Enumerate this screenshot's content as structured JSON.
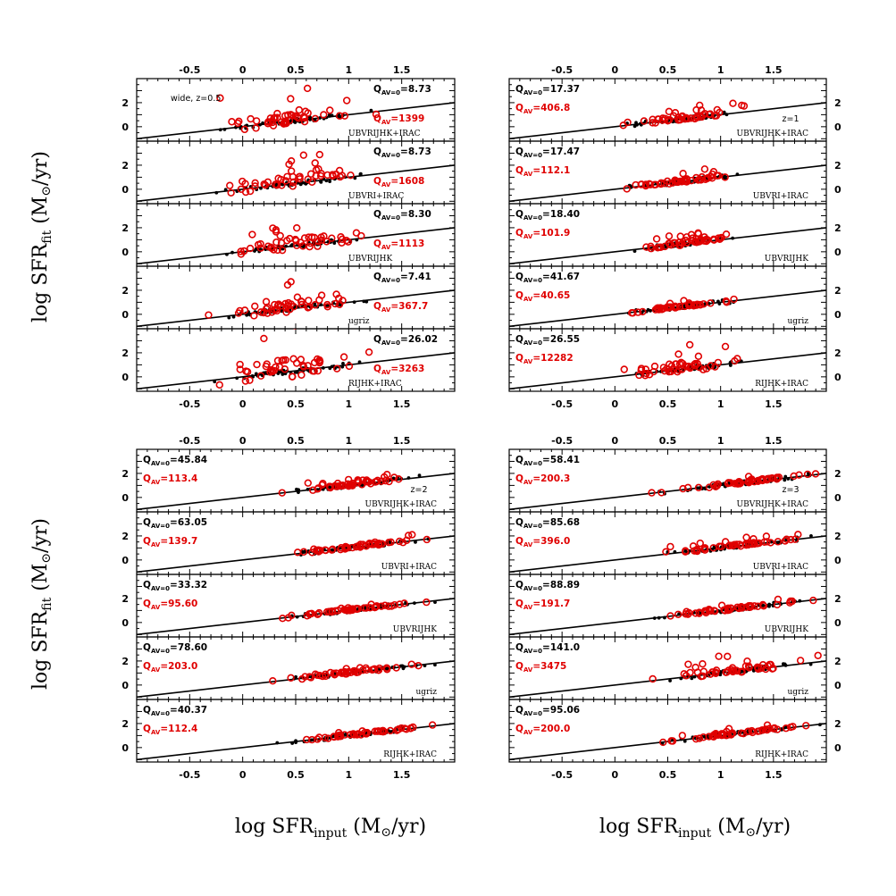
{
  "figure": {
    "y_axis_title_main": "log SFR",
    "y_axis_title_sub": "fit",
    "y_axis_title_units": " (M",
    "y_axis_title_units_end": "/yr)",
    "x_axis_title_main": "log SFR",
    "x_axis_title_sub": "input",
    "x_axis_title_units": " (M",
    "x_axis_title_units_end": "/yr)",
    "x_tick_labels": [
      "-0.5",
      "0",
      "0.5",
      "1",
      "1.5"
    ],
    "y_tick_labels": [
      "0",
      "2"
    ],
    "q_black_prefix": "Q",
    "q_black_sub": "AV=0",
    "q_red_prefix": "Q",
    "q_red_sub": "AV",
    "colors": {
      "fixed_av0_points": "#000000",
      "free_av_points": "#e00000",
      "relation_line": "#000000"
    }
  },
  "chart_data": [
    {
      "type": "scatter",
      "annotation": "wide, z=0.5",
      "xlim": [
        -1,
        2
      ],
      "ylim": [
        -1.2,
        4
      ],
      "line": {
        "slope": 1,
        "intercept": 0
      },
      "panels": [
        {
          "band": "UBVRIJHK+IRAC",
          "q_black": "8.73",
          "q_red": "1399"
        },
        {
          "band": "UBVRI+IRAC",
          "q_black": "8.73",
          "q_red": "1608"
        },
        {
          "band": "UBVRIJHK",
          "q_black": "8.30",
          "q_red": "1113"
        },
        {
          "band": "ugriz",
          "q_black": "7.41",
          "q_red": "367.7"
        },
        {
          "band": "RIJHK+IRAC",
          "q_black": "26.02",
          "q_red": "3263"
        }
      ]
    },
    {
      "type": "scatter",
      "annotation": "z=1",
      "xlim": [
        -1,
        2
      ],
      "ylim": [
        -1.2,
        4
      ],
      "line": {
        "slope": 1,
        "intercept": 0
      },
      "panels": [
        {
          "band": "UBVRIJHK+IRAC",
          "q_black": "17.37",
          "q_red": "406.8"
        },
        {
          "band": "UBVRI+IRAC",
          "q_black": "17.47",
          "q_red": "112.1"
        },
        {
          "band": "UBVRIJHK",
          "q_black": "18.40",
          "q_red": "101.9"
        },
        {
          "band": "ugriz",
          "q_black": "41.67",
          "q_red": "40.65"
        },
        {
          "band": "RIJHK+IRAC",
          "q_black": "26.55",
          "q_red": "12282"
        }
      ]
    },
    {
      "type": "scatter",
      "annotation": "z=2",
      "xlim": [
        -1,
        2
      ],
      "ylim": [
        -1.2,
        4
      ],
      "line": {
        "slope": 1,
        "intercept": 0
      },
      "panels": [
        {
          "band": "UBVRIJHK+IRAC",
          "q_black": "45.84",
          "q_red": "113.4"
        },
        {
          "band": "UBVRI+IRAC",
          "q_black": "63.05",
          "q_red": "139.7"
        },
        {
          "band": "UBVRIJHK",
          "q_black": "33.32",
          "q_red": "95.60"
        },
        {
          "band": "ugriz",
          "q_black": "78.60",
          "q_red": "203.0"
        },
        {
          "band": "RIJHK+IRAC",
          "q_black": "40.37",
          "q_red": "112.4"
        }
      ]
    },
    {
      "type": "scatter",
      "annotation": "z=3",
      "xlim": [
        -1,
        2
      ],
      "ylim": [
        -1.2,
        4
      ],
      "line": {
        "slope": 1,
        "intercept": 0
      },
      "panels": [
        {
          "band": "UBVRIJHK+IRAC",
          "q_black": "58.41",
          "q_red": "200.3"
        },
        {
          "band": "UBVRI+IRAC",
          "q_black": "85.68",
          "q_red": "396.0"
        },
        {
          "band": "UBVRIJHK",
          "q_black": "88.89",
          "q_red": "191.7"
        },
        {
          "band": "ugriz",
          "q_black": "141.0",
          "q_red": "3475"
        },
        {
          "band": "RIJHK+IRAC",
          "q_black": "95.06",
          "q_red": "200.0"
        }
      ]
    }
  ]
}
